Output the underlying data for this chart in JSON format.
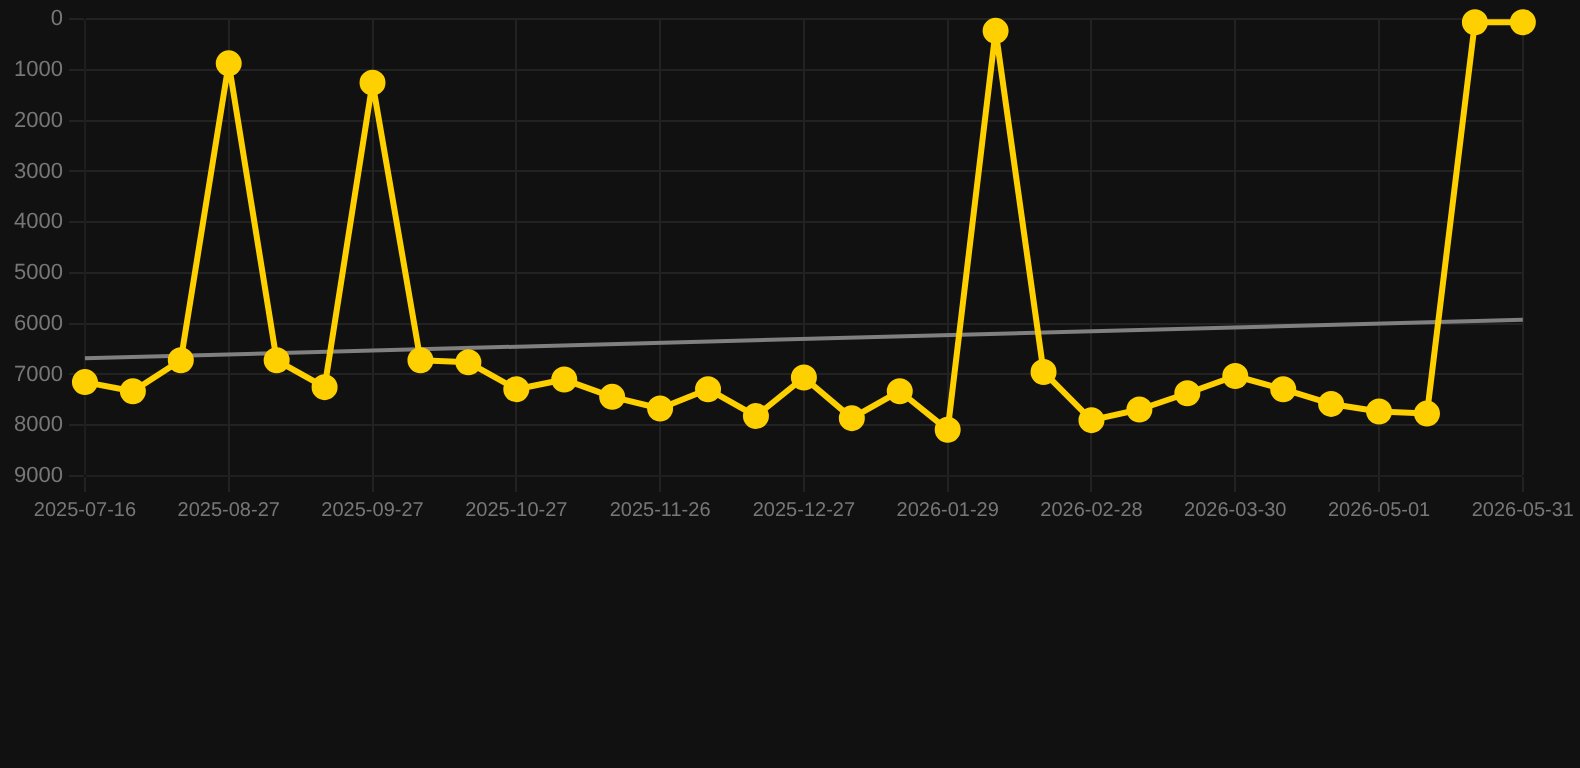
{
  "chart_data": {
    "type": "line",
    "categories": [
      "2025-07-16",
      null,
      null,
      "2025-08-27",
      null,
      null,
      "2025-09-27",
      null,
      null,
      "2025-10-27",
      null,
      null,
      "2025-11-26",
      null,
      null,
      "2025-12-27",
      null,
      null,
      "2026-01-29",
      null,
      null,
      "2026-02-28",
      null,
      null,
      "2026-03-30",
      null,
      null,
      "2026-05-01",
      null,
      null,
      "2026-05-31"
    ],
    "series": [
      {
        "color": "#ffd000",
        "values": [
          7150,
          7330,
          6720,
          870,
          6720,
          7250,
          1250,
          6720,
          6760,
          7290,
          7100,
          7440,
          7670,
          7290,
          7820,
          7060,
          7860,
          7330,
          8090,
          230,
          6950,
          7900,
          7690,
          7370,
          7030,
          7290,
          7580,
          7730,
          7770,
          60,
          60
        ]
      },
      {
        "type": "line",
        "color": "#808080",
        "marker": "none",
        "values": [
          6680,
          null,
          null,
          null,
          null,
          null,
          null,
          null,
          null,
          null,
          null,
          null,
          null,
          null,
          null,
          null,
          null,
          null,
          null,
          null,
          null,
          null,
          null,
          null,
          null,
          null,
          null,
          null,
          null,
          null,
          5920
        ]
      }
    ],
    "ylim": [
      9000,
      0
    ],
    "yticks": [
      0,
      1000,
      2000,
      3000,
      4000,
      5000,
      6000,
      7000,
      8000,
      9000
    ],
    "grid": true,
    "legend": false,
    "marker": "circle",
    "line_style": "solid"
  }
}
